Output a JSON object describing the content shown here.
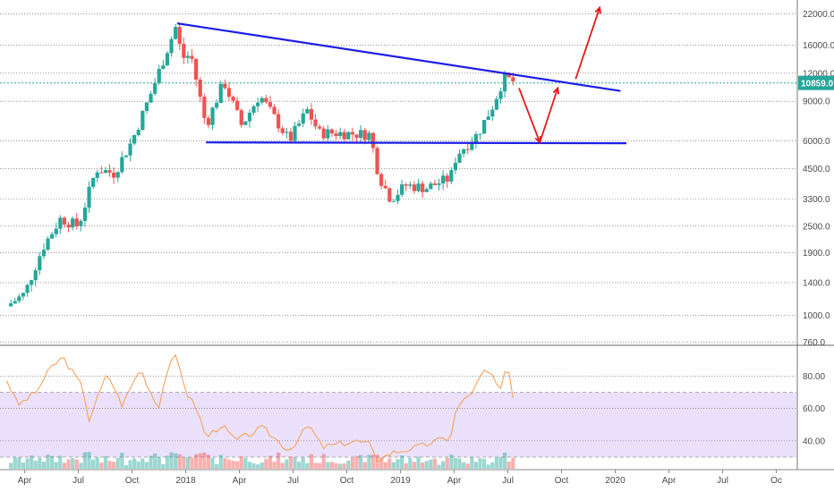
{
  "chart_data": [
    {
      "type": "candlestick",
      "scale": "log",
      "ylim": [
        750,
        24500
      ],
      "x_start": "2017-03",
      "y_ticks": [
        {
          "v": 22000,
          "label": "22000.0"
        },
        {
          "v": 16000,
          "label": "16000.0"
        },
        {
          "v": 12000,
          "label": "12000.0"
        },
        {
          "v": 9000,
          "label": "9000.0"
        },
        {
          "v": 6000,
          "label": "6000.0"
        },
        {
          "v": 4500,
          "label": "4500.0"
        },
        {
          "v": 3300,
          "label": "3300.0"
        },
        {
          "v": 2500,
          "label": "2500.0"
        },
        {
          "v": 1900,
          "label": "1900.0"
        },
        {
          "v": 1400,
          "label": "1400.0"
        },
        {
          "v": 1000,
          "label": "1000.0"
        },
        {
          "v": 760,
          "label": "760.0"
        }
      ],
      "price_marker": {
        "v": 10859,
        "label": "10859.0",
        "color": "#26a69a"
      },
      "keypoints": [
        [
          "2017-03",
          1100
        ],
        [
          "2017-04",
          1250
        ],
        [
          "2017-05",
          2000
        ],
        [
          "2017-06",
          2700
        ],
        [
          "2017-07",
          2500
        ],
        [
          "2017-08",
          4500
        ],
        [
          "2017-09",
          4300
        ],
        [
          "2017-10",
          6000
        ],
        [
          "2017-11",
          9500
        ],
        [
          "2017-12-15",
          19500
        ],
        [
          "2017-12-25",
          14000
        ],
        [
          "2018-01-10",
          14500
        ],
        [
          "2018-02-05",
          7000
        ],
        [
          "2018-03-05",
          11000
        ],
        [
          "2018-04-05",
          7000
        ],
        [
          "2018-05-05",
          9600
        ],
        [
          "2018-06-25",
          6000
        ],
        [
          "2018-07-25",
          8200
        ],
        [
          "2018-08-15",
          6500
        ],
        [
          "2018-09-15",
          6500
        ],
        [
          "2018-11-10",
          6400
        ],
        [
          "2018-11-25",
          4200
        ],
        [
          "2018-12-15",
          3300
        ],
        [
          "2019-01-10",
          3800
        ],
        [
          "2019-02-15",
          3700
        ],
        [
          "2019-03-25",
          4100
        ],
        [
          "2019-04-05",
          5200
        ],
        [
          "2019-05-10",
          6400
        ],
        [
          "2019-06-05",
          8500
        ],
        [
          "2019-06-25",
          11500
        ],
        [
          "2019-07-15",
          10859
        ]
      ],
      "trendlines": [
        {
          "name": "resistance",
          "color": "#1e1ee6",
          "points": [
            [
              "2017-12-17",
              20000
            ],
            [
              "2020-01-10",
              10000
            ]
          ]
        },
        {
          "name": "support",
          "color": "#1e1ee6",
          "points": [
            [
              "2018-02-05",
              5900
            ],
            [
              "2020-01-20",
              5850
            ]
          ]
        }
      ],
      "projection": {
        "color": "#e21b1b",
        "points": [
          [
            "2019-07-20",
            10300
          ],
          [
            "2019-08-25",
            5900
          ],
          [
            "2019-09-25",
            10300
          ],
          [
            "2019-10-25",
            11300
          ],
          [
            "2019-12-05",
            23500
          ]
        ]
      }
    },
    {
      "type": "line",
      "name": "RSI",
      "ylim": [
        25,
        98
      ],
      "band": [
        30,
        70
      ],
      "band_color": "#e8dcfb",
      "line_color": "#f5a25d",
      "y_ticks": [
        {
          "v": 80,
          "label": "80.00"
        },
        {
          "v": 60,
          "label": "60.00"
        },
        {
          "v": 40,
          "label": "40.00"
        }
      ],
      "keypoints": [
        [
          "2017-03",
          78
        ],
        [
          "2017-03-20",
          62
        ],
        [
          "2017-04-20",
          70
        ],
        [
          "2017-05-15",
          85
        ],
        [
          "2017-06-05",
          92
        ],
        [
          "2017-07-10",
          72
        ],
        [
          "2017-07-18",
          52
        ],
        [
          "2017-08-20",
          82
        ],
        [
          "2017-09-15",
          62
        ],
        [
          "2017-10-15",
          85
        ],
        [
          "2017-11-15",
          60
        ],
        [
          "2017-12-01",
          85
        ],
        [
          "2017-12-15",
          92
        ],
        [
          "2018-01-05",
          68
        ],
        [
          "2018-01-20",
          60
        ],
        [
          "2018-02-05",
          42
        ],
        [
          "2018-03-01",
          50
        ],
        [
          "2018-03-25",
          40
        ],
        [
          "2018-05-10",
          48
        ],
        [
          "2018-06-25",
          34
        ],
        [
          "2018-07-28",
          50
        ],
        [
          "2018-08-20",
          36
        ],
        [
          "2018-10-15",
          40
        ],
        [
          "2018-11-10",
          38
        ],
        [
          "2018-11-20",
          28
        ],
        [
          "2018-12-20",
          33
        ],
        [
          "2019-01-30",
          36
        ],
        [
          "2019-03-01",
          40
        ],
        [
          "2019-03-25",
          42
        ],
        [
          "2019-04-05",
          60
        ],
        [
          "2019-05-05",
          72
        ],
        [
          "2019-05-20",
          83
        ],
        [
          "2019-06-08",
          80
        ],
        [
          "2019-06-18",
          68
        ],
        [
          "2019-06-25",
          82
        ],
        [
          "2019-07-05",
          80
        ],
        [
          "2019-07-10",
          68
        ],
        [
          "2019-07-15",
          70
        ]
      ]
    }
  ],
  "x_axis": {
    "labels": [
      {
        "d": "2017-04",
        "label": "Apr"
      },
      {
        "d": "2017-07",
        "label": "Jul"
      },
      {
        "d": "2017-10",
        "label": "Oct"
      },
      {
        "d": "2018-01",
        "label": "2018"
      },
      {
        "d": "2018-04",
        "label": "Apr"
      },
      {
        "d": "2018-07",
        "label": "Jul"
      },
      {
        "d": "2018-10",
        "label": "Oct"
      },
      {
        "d": "2019-01",
        "label": "2019"
      },
      {
        "d": "2019-04",
        "label": "Apr"
      },
      {
        "d": "2019-07",
        "label": "Jul"
      },
      {
        "d": "2019-10",
        "label": "Oct"
      },
      {
        "d": "2020-01",
        "label": "2020"
      },
      {
        "d": "2020-04",
        "label": "Apr"
      },
      {
        "d": "2020-07",
        "label": "Jul"
      },
      {
        "d": "2020-10",
        "label": "Oc"
      }
    ]
  },
  "colors": {
    "up": "#26a69a",
    "down": "#ef5350",
    "grid": "#555555",
    "axis_text": "#4a4a4a"
  }
}
